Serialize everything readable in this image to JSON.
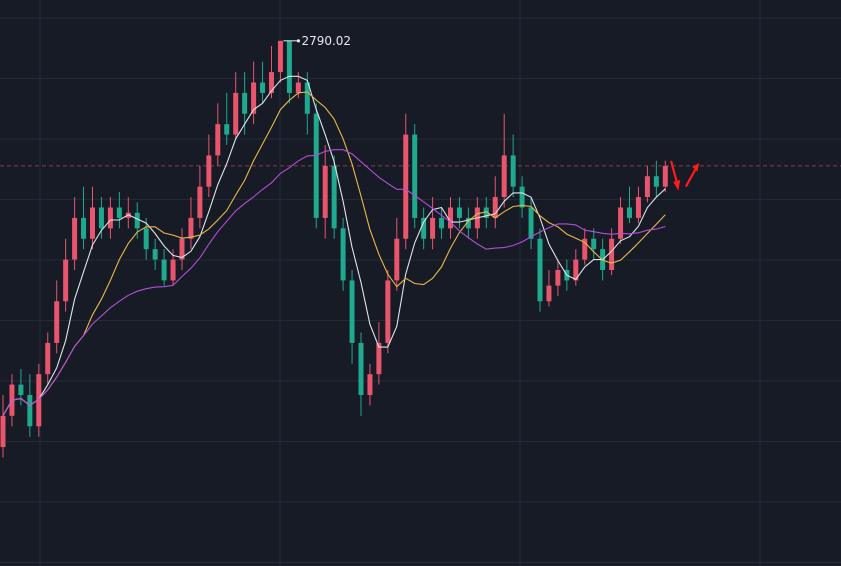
{
  "chart_data": {
    "type": "candlestick",
    "high_label": "2790.02",
    "reference_line_style": "dashed",
    "grid": true,
    "candles": [
      [
        2400,
        2430,
        2390,
        2450
      ],
      [
        2430,
        2460,
        2420,
        2470
      ],
      [
        2460,
        2450,
        2440,
        2475
      ],
      [
        2450,
        2420,
        2410,
        2470
      ],
      [
        2420,
        2470,
        2410,
        2480
      ],
      [
        2470,
        2500,
        2460,
        2510
      ],
      [
        2500,
        2540,
        2490,
        2560
      ],
      [
        2540,
        2580,
        2530,
        2600
      ],
      [
        2580,
        2620,
        2570,
        2640
      ],
      [
        2620,
        2600,
        2590,
        2650
      ],
      [
        2600,
        2630,
        2590,
        2650
      ],
      [
        2630,
        2610,
        2600,
        2640
      ],
      [
        2610,
        2630,
        2600,
        2640
      ],
      [
        2630,
        2620,
        2610,
        2645
      ],
      [
        2620,
        2625,
        2610,
        2640
      ],
      [
        2625,
        2610,
        2600,
        2635
      ],
      [
        2610,
        2590,
        2580,
        2620
      ],
      [
        2590,
        2580,
        2570,
        2600
      ],
      [
        2580,
        2560,
        2555,
        2590
      ],
      [
        2560,
        2580,
        2555,
        2590
      ],
      [
        2580,
        2600,
        2570,
        2610
      ],
      [
        2600,
        2620,
        2590,
        2640
      ],
      [
        2620,
        2650,
        2610,
        2670
      ],
      [
        2650,
        2680,
        2640,
        2700
      ],
      [
        2680,
        2710,
        2670,
        2730
      ],
      [
        2710,
        2700,
        2690,
        2740
      ],
      [
        2700,
        2740,
        2695,
        2760
      ],
      [
        2740,
        2720,
        2700,
        2760
      ],
      [
        2720,
        2750,
        2710,
        2770
      ],
      [
        2750,
        2740,
        2730,
        2770
      ],
      [
        2740,
        2760,
        2735,
        2785
      ],
      [
        2760,
        2790,
        2750,
        2790.02
      ],
      [
        2790,
        2740,
        2730,
        2790
      ],
      [
        2740,
        2750,
        2735,
        2760
      ],
      [
        2750,
        2720,
        2700,
        2760
      ],
      [
        2720,
        2620,
        2610,
        2730
      ],
      [
        2620,
        2670,
        2600,
        2690
      ],
      [
        2670,
        2610,
        2600,
        2680
      ],
      [
        2610,
        2560,
        2550,
        2620
      ],
      [
        2560,
        2500,
        2480,
        2570
      ],
      [
        2500,
        2450,
        2430,
        2510
      ],
      [
        2450,
        2470,
        2440,
        2480
      ],
      [
        2470,
        2500,
        2460,
        2520
      ],
      [
        2500,
        2560,
        2490,
        2570
      ],
      [
        2560,
        2600,
        2550,
        2620
      ],
      [
        2600,
        2700,
        2590,
        2720
      ],
      [
        2700,
        2620,
        2610,
        2710
      ],
      [
        2620,
        2600,
        2590,
        2630
      ],
      [
        2600,
        2620,
        2590,
        2640
      ],
      [
        2620,
        2610,
        2600,
        2630
      ],
      [
        2610,
        2630,
        2600,
        2640
      ],
      [
        2630,
        2620,
        2610,
        2640
      ],
      [
        2620,
        2610,
        2600,
        2630
      ],
      [
        2610,
        2630,
        2600,
        2640
      ],
      [
        2630,
        2620,
        2610,
        2640
      ],
      [
        2620,
        2640,
        2610,
        2660
      ],
      [
        2640,
        2680,
        2630,
        2720
      ],
      [
        2680,
        2650,
        2640,
        2700
      ],
      [
        2650,
        2630,
        2620,
        2660
      ],
      [
        2630,
        2600,
        2590,
        2640
      ],
      [
        2600,
        2540,
        2530,
        2610
      ],
      [
        2540,
        2555,
        2535,
        2570
      ],
      [
        2555,
        2570,
        2545,
        2580
      ],
      [
        2570,
        2560,
        2550,
        2580
      ],
      [
        2560,
        2580,
        2555,
        2590
      ],
      [
        2580,
        2600,
        2575,
        2610
      ],
      [
        2600,
        2590,
        2580,
        2610
      ],
      [
        2590,
        2570,
        2560,
        2600
      ],
      [
        2570,
        2600,
        2565,
        2610
      ],
      [
        2600,
        2630,
        2595,
        2640
      ],
      [
        2630,
        2620,
        2615,
        2650
      ],
      [
        2620,
        2640,
        2615,
        2650
      ],
      [
        2640,
        2660,
        2635,
        2670
      ],
      [
        2660,
        2650,
        2640,
        2675
      ],
      [
        2650,
        2670,
        2645,
        2675
      ]
    ],
    "ma_colors": {
      "ma_white": "#dfe3ea",
      "ma_yellow": "#e8b84a",
      "ma_purple": "#b44ed6"
    },
    "colors": {
      "up": "#e8556d",
      "down": "#1fa98f",
      "background": "#161b26",
      "grid": "#232a36",
      "reference_line": "#8c3b4b",
      "arrows": "#ff1b1b"
    }
  }
}
